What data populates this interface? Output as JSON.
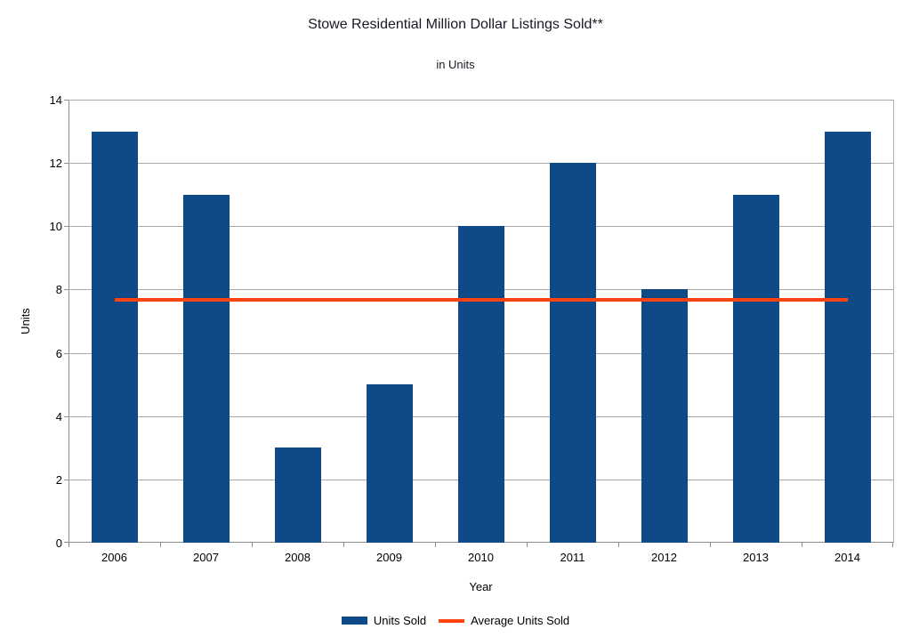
{
  "chart_data": {
    "type": "bar",
    "title": "Stowe Residential Million Dollar Listings Sold**",
    "subtitle": "in Units",
    "xlabel": "Year",
    "ylabel": "Units",
    "categories": [
      "2006",
      "2007",
      "2008",
      "2009",
      "2010",
      "2011",
      "2012",
      "2013",
      "2014"
    ],
    "series": [
      {
        "name": "Units Sold",
        "type": "bar",
        "color": "#0d4a87",
        "values": [
          13,
          11,
          3,
          5,
          10,
          12,
          8,
          11,
          13
        ]
      },
      {
        "name": "Average Units Sold",
        "type": "line",
        "color": "#ff420e",
        "value": 7.67
      }
    ],
    "ylim": [
      0,
      14
    ],
    "yticks": [
      0,
      2,
      4,
      6,
      8,
      10,
      12,
      14
    ],
    "grid": true,
    "legend_position": "bottom",
    "colors": {
      "grid": "#a9a9a9",
      "axis": "#8c8c8c",
      "background": "#ffffff",
      "text": "#000000"
    }
  }
}
